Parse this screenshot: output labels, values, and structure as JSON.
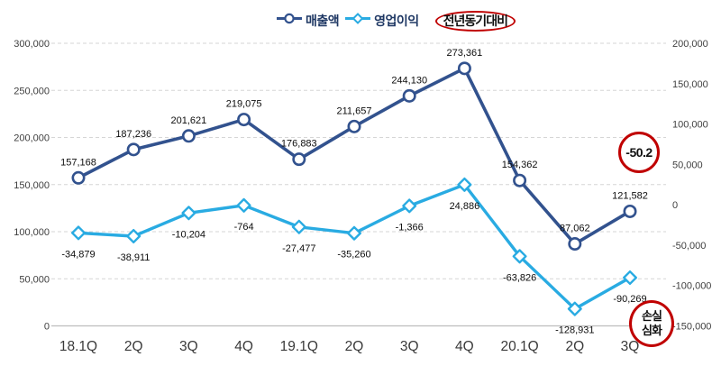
{
  "legend": {
    "items": [
      {
        "label": "매출액",
        "marker": "circle",
        "color": "#32528e"
      },
      {
        "label": "영업이익",
        "marker": "diamond",
        "color": "#29abe2"
      }
    ],
    "highlight": {
      "label": "전년동기대비",
      "color": "#c00000"
    }
  },
  "annotations": {
    "yoy_badge": {
      "text": "-50.2",
      "color": "#c00000"
    },
    "loss_badge": {
      "lines": [
        "손실",
        "심화"
      ],
      "color": "#c00000"
    }
  },
  "chart_data": {
    "type": "line",
    "title": "",
    "categories": [
      "18.1Q",
      "2Q",
      "3Q",
      "4Q",
      "19.1Q",
      "2Q",
      "3Q",
      "4Q",
      "20.1Q",
      "2Q",
      "3Q"
    ],
    "series": [
      {
        "name": "매출액",
        "axis": "left",
        "color": "#32528e",
        "marker": "circle",
        "values": [
          157168,
          187236,
          201621,
          219075,
          176883,
          211657,
          244130,
          273361,
          154362,
          87062,
          121582
        ],
        "labels": [
          "157,168",
          "187,236",
          "201,621",
          "219,075",
          "176,883",
          "211,657",
          "244,130",
          "273,361",
          "154,362",
          "87,062",
          "121,582"
        ]
      },
      {
        "name": "영업이익",
        "axis": "right",
        "color": "#29abe2",
        "marker": "diamond",
        "values": [
          -34879,
          -38911,
          -10204,
          -764,
          -27477,
          -35260,
          -1366,
          24886,
          -63826,
          -128931,
          -90269
        ],
        "labels": [
          "-34,879",
          "-38,911",
          "-10,204",
          "-764",
          "-27,477",
          "-35,260",
          "-1,366",
          "24,886",
          "-63,826",
          "-128,931",
          "-90,269"
        ]
      }
    ],
    "axes": {
      "left": {
        "min": 0,
        "max": 300000,
        "step": 50000,
        "ticks": [
          {
            "value": 0,
            "label": "0"
          },
          {
            "value": 50000,
            "label": "50,000"
          },
          {
            "value": 100000,
            "label": "100,000"
          },
          {
            "value": 150000,
            "label": "150,000"
          },
          {
            "value": 200000,
            "label": "200,000"
          },
          {
            "value": 250000,
            "label": "250,000"
          },
          {
            "value": 300000,
            "label": "300,000"
          }
        ]
      },
      "right": {
        "min": -150000,
        "max": 200000,
        "step": 50000,
        "ticks": [
          {
            "value": -150000,
            "label": "-150,000"
          },
          {
            "value": -100000,
            "label": "-100,000"
          },
          {
            "value": -50000,
            "label": "-50,000"
          },
          {
            "value": 0,
            "label": "0"
          },
          {
            "value": 50000,
            "label": "50,000"
          },
          {
            "value": 100000,
            "label": "100,000"
          },
          {
            "value": 150000,
            "label": "150,000"
          },
          {
            "value": 200000,
            "label": "200,000"
          }
        ]
      }
    },
    "grid": "horizontal-dashed",
    "legend_position": "top",
    "colors": {
      "grid": "#d6d6d6",
      "axis_line": "#bdbdbd",
      "tick_text": "#404040",
      "data_label": "#0d0d0d"
    }
  }
}
